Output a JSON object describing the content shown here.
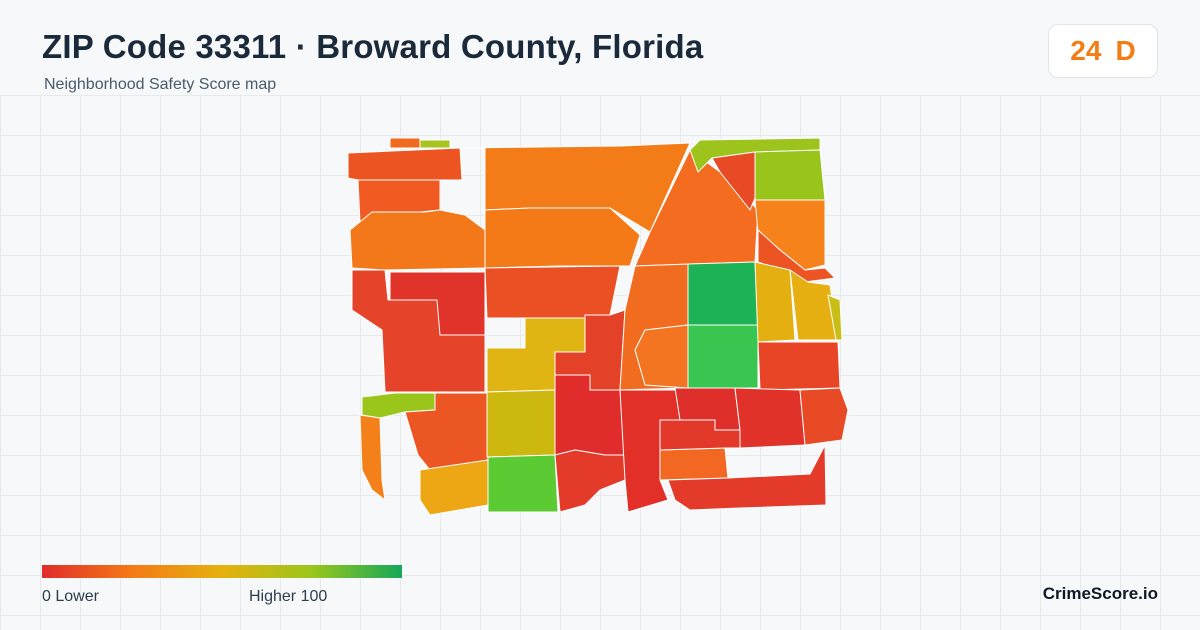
{
  "header": {
    "title": "ZIP Code 33311 · Broward County, Florida",
    "subtitle": "Neighborhood Safety Score map"
  },
  "score": {
    "value": "24",
    "grade": "D",
    "color": "#f47c14"
  },
  "legend": {
    "min_label": "0  Lower",
    "max_label": "Higher  100",
    "gradient": [
      "#e02d2a",
      "#f47a16",
      "#e5b10f",
      "#9ac61b",
      "#14a85a"
    ]
  },
  "brand": "CrimeScore.io",
  "map": {
    "regions": [
      {
        "id": "north-top-sliver-orange",
        "color": "#f06a1f"
      },
      {
        "id": "north-top-sliver-green",
        "color": "#a8c421"
      },
      {
        "id": "northwest-red-orange",
        "color": "#ec5522"
      },
      {
        "id": "northwest-mid-orange",
        "color": "#f15a22"
      },
      {
        "id": "northwest-lower-orange",
        "color": "#f3781a"
      },
      {
        "id": "north-center-orange",
        "color": "#f47c18"
      },
      {
        "id": "north-center-lower-orange",
        "color": "#f47a18"
      },
      {
        "id": "north-triangle-orange",
        "color": "#f36c1f"
      },
      {
        "id": "northeast-green-strip",
        "color": "#9cc41d"
      },
      {
        "id": "northeast-red",
        "color": "#e84a26"
      },
      {
        "id": "northeast-lime",
        "color": "#98c41c"
      },
      {
        "id": "northeast-orange",
        "color": "#f5821a"
      },
      {
        "id": "east-red-wedge",
        "color": "#ec5424"
      },
      {
        "id": "west-red-large",
        "color": "#e5442a"
      },
      {
        "id": "west-red-dark",
        "color": "#e0332a"
      },
      {
        "id": "center-red-orange",
        "color": "#ea5024"
      },
      {
        "id": "center-yellow-upper",
        "color": "#e0b413"
      },
      {
        "id": "center-red-small",
        "color": "#e34228"
      },
      {
        "id": "center-orange-strip",
        "color": "#f26c1f"
      },
      {
        "id": "center-orange-ring",
        "color": "#f37421"
      },
      {
        "id": "green-upper",
        "color": "#1db256"
      },
      {
        "id": "green-lower",
        "color": "#38c550"
      },
      {
        "id": "east-yellow-1",
        "color": "#e3af11"
      },
      {
        "id": "east-yellow-2",
        "color": "#e6b012"
      },
      {
        "id": "east-yellow-green",
        "color": "#c9be15"
      },
      {
        "id": "east-red-mid",
        "color": "#e84527"
      },
      {
        "id": "southwest-lime",
        "color": "#9ac61b"
      },
      {
        "id": "southwest-orange",
        "color": "#f4801a"
      },
      {
        "id": "southwest-red-orange",
        "color": "#ec5622"
      },
      {
        "id": "center-olive",
        "color": "#cdb810"
      },
      {
        "id": "south-yellow",
        "color": "#eda614"
      },
      {
        "id": "south-green",
        "color": "#5cca33"
      },
      {
        "id": "south-center-red",
        "color": "#e02c2a"
      },
      {
        "id": "south-center-red-2",
        "color": "#e43a29"
      },
      {
        "id": "south-red-3",
        "color": "#e23029"
      },
      {
        "id": "south-red-4",
        "color": "#df2f2a"
      },
      {
        "id": "south-orange",
        "color": "#f26823"
      },
      {
        "id": "south-east-red",
        "color": "#e13229"
      },
      {
        "id": "south-east-red-2",
        "color": "#e3392a"
      },
      {
        "id": "east-red-low",
        "color": "#e84a26"
      },
      {
        "id": "south-bottom-red",
        "color": "#e43a29"
      }
    ]
  }
}
